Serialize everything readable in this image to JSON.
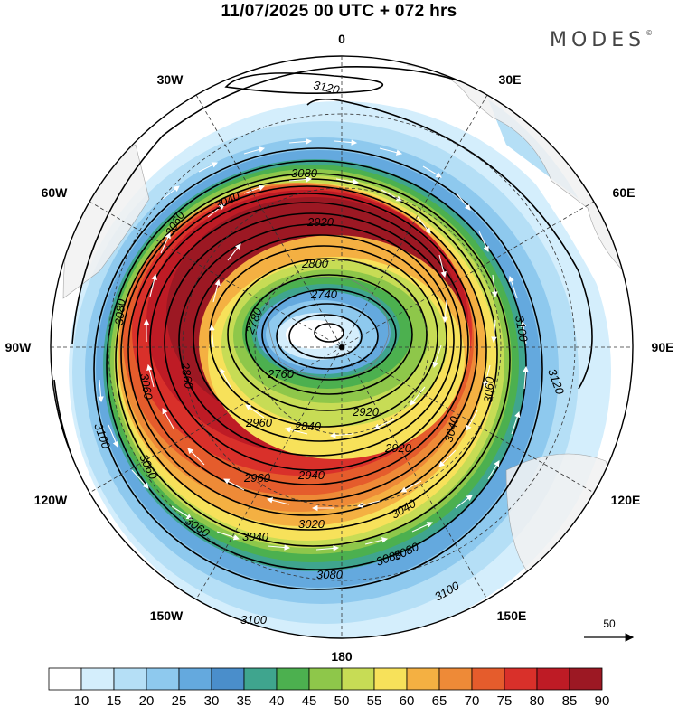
{
  "header": {
    "title": "11/07/2025  00 UTC  + 072 hrs",
    "brand": "MODES"
  },
  "map": {
    "projection": "south-polar-stereographic",
    "longitude_labels": [
      "0",
      "30E",
      "60E",
      "90E",
      "120E",
      "150E",
      "180",
      "150W",
      "120W",
      "90W",
      "60W",
      "30W"
    ],
    "height_contour_labels": [
      "3120",
      "3080",
      "3040",
      "2920",
      "2800",
      "2740",
      "2780",
      "2760",
      "2860",
      "2840",
      "2960",
      "2940",
      "3020",
      "2920",
      "3060",
      "3040",
      "3080",
      "3100",
      "3100",
      "3120",
      "3100",
      "3080",
      "3060",
      "3060",
      "3040",
      "3060",
      "3080",
      "3080",
      "2960",
      "2920",
      "3100",
      "3040",
      "3060"
    ],
    "field": "geopotential height contours with wind speed shading and wind vectors",
    "reference_vector": {
      "value": "50"
    }
  },
  "colorbar": {
    "levels": [
      "10",
      "15",
      "20",
      "25",
      "30",
      "35",
      "40",
      "45",
      "50",
      "55",
      "60",
      "65",
      "70",
      "75",
      "80",
      "85",
      "90"
    ],
    "colors": [
      "#ffffff",
      "#d4eefc",
      "#b5dff6",
      "#8ec9ee",
      "#64a9de",
      "#4a8ecb",
      "#3fa58e",
      "#4cb04f",
      "#8ec74a",
      "#c7dc55",
      "#f7e15a",
      "#f4b042",
      "#ee8a37",
      "#e55c2c",
      "#d9302a",
      "#be1b25",
      "#9c1823"
    ]
  }
}
